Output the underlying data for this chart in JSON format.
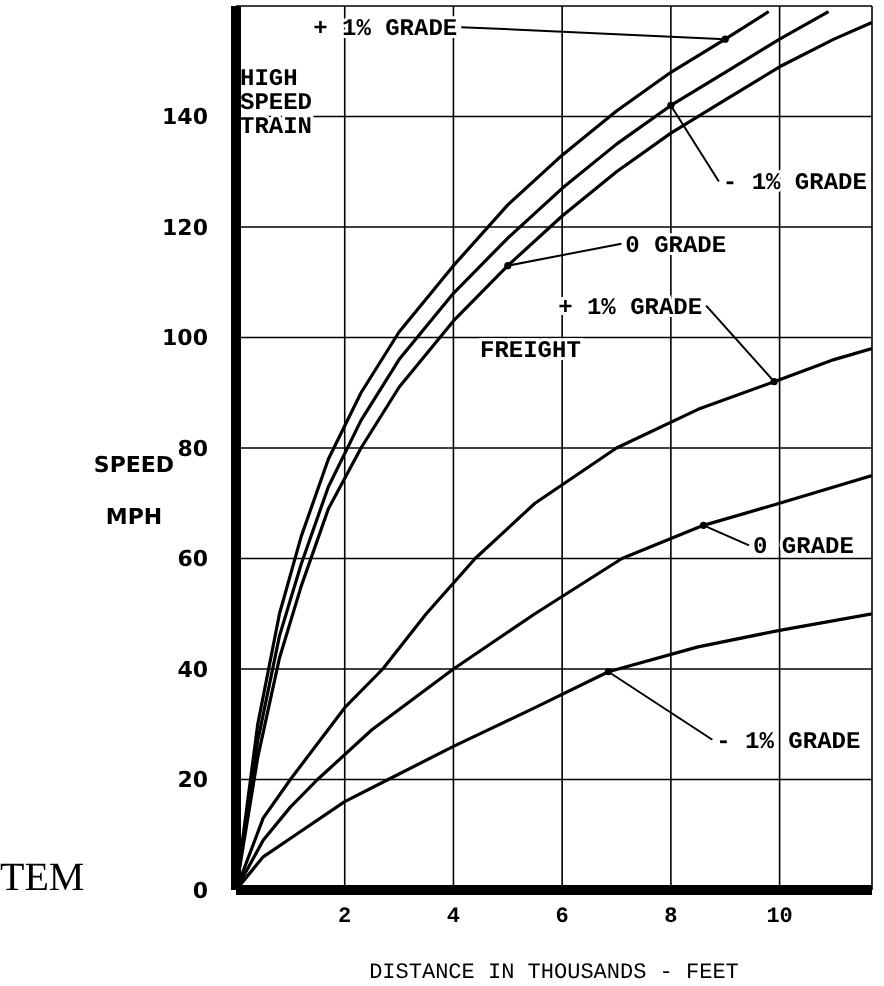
{
  "chart_data": {
    "type": "line",
    "xlabel": "DISTANCE IN THOUSANDS - FEET",
    "ylabel": "SPEED MPH",
    "xlim": [
      0,
      11.7
    ],
    "xticks": [
      2,
      4,
      6,
      8,
      10
    ],
    "ylim": [
      0,
      160
    ],
    "yticks": [
      0,
      20,
      40,
      60,
      80,
      100,
      120,
      140
    ],
    "grid": true,
    "marker": "none",
    "line_style": "solid",
    "series": [
      {
        "name": "+ 1% GRADE",
        "color": "#000000",
        "x": [
          0,
          0.4,
          0.8,
          1.2,
          1.7,
          2.3,
          3,
          4,
          5,
          6,
          7,
          8,
          9,
          9.8
        ],
        "values": [
          0,
          30,
          50,
          64,
          78,
          90,
          101,
          113,
          124,
          133,
          141,
          148,
          154,
          159
        ]
      },
      {
        "name": "- 1% GRADE",
        "color": "#000000",
        "x": [
          0,
          0.4,
          0.8,
          1.2,
          1.7,
          2.3,
          3,
          4,
          5,
          6,
          7,
          8,
          9,
          10,
          10.9
        ],
        "values": [
          0,
          27,
          46,
          59,
          73,
          85,
          96,
          108,
          118,
          127,
          135,
          142,
          148,
          154,
          159
        ]
      },
      {
        "name": "0 GRADE",
        "color": "#000000",
        "x": [
          0,
          0.4,
          0.8,
          1.2,
          1.7,
          2.3,
          3,
          4,
          5,
          6,
          7,
          8,
          9,
          10,
          11,
          11.7
        ],
        "values": [
          0,
          24,
          42,
          55,
          69,
          80,
          91,
          103,
          113,
          122,
          130,
          137,
          143,
          149,
          154,
          157
        ]
      },
      {
        "name": "+ 1% GRADE",
        "color": "#000000",
        "x": [
          0,
          0.5,
          1,
          2,
          2.7,
          3.5,
          4.4,
          5.5,
          7,
          8.5,
          9.9,
          11,
          11.7
        ],
        "values": [
          0,
          13,
          20,
          33,
          40,
          50,
          60,
          70,
          80,
          87,
          92,
          96,
          98
        ]
      },
      {
        "name": "0 GRADE",
        "color": "#000000",
        "x": [
          0,
          0.5,
          1,
          1.5,
          2.5,
          4,
          5.5,
          7.1,
          8.6,
          10,
          11.7
        ],
        "values": [
          0,
          9,
          15,
          20,
          29,
          40,
          50,
          60,
          66,
          70,
          75
        ]
      },
      {
        "name": "- 1% GRADE",
        "color": "#000000",
        "x": [
          0,
          0.5,
          1.1,
          2,
          2.8,
          4,
          5.5,
          6.85,
          8.5,
          10,
          11.7
        ],
        "values": [
          0,
          6,
          10,
          16,
          20,
          26,
          33,
          39.5,
          44,
          47,
          50
        ]
      }
    ],
    "annotations": [
      "HIGH SPEED TRAIN",
      "FREIGHT",
      "TEM"
    ]
  }
}
